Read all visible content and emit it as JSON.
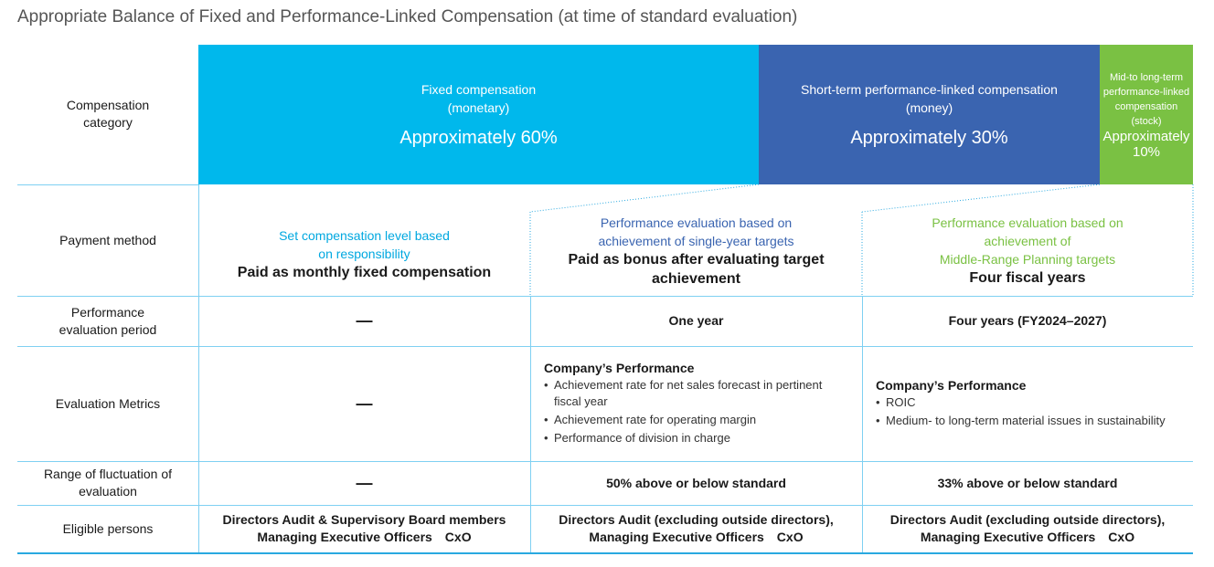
{
  "title": "Appropriate Balance of Fixed and Performance-Linked Compensation (at time of standard evaluation)",
  "colors": {
    "fixed": "#00b8ec",
    "short_term": "#3a64b0",
    "long_term": "#7ac143",
    "line": "#7fd0f2"
  },
  "row_labels": {
    "category": "Compensation category",
    "payment": "Payment method",
    "period": "Performance evaluation period",
    "metrics": "Evaluation Metrics",
    "range": "Range of fluctuation of evaluation",
    "eligible": "Eligible persons"
  },
  "categories": {
    "fixed": {
      "name_line1": "Fixed compensation",
      "name_line2": "(monetary)",
      "share": "Approximately 60%"
    },
    "short_term": {
      "name_line1": "Short-term performance-linked compensation",
      "name_line2": "(money)",
      "share": "Approximately 30%"
    },
    "long_term": {
      "name_line1": "Mid-to long-term",
      "name_line2": "performance-linked",
      "name_line3": "compensation",
      "name_line4": "(stock)",
      "share_line1": "Approximately",
      "share_line2": "10%"
    }
  },
  "payment": {
    "fixed": {
      "hl1": "Set compensation level based",
      "hl2": "on responsibility",
      "main": "Paid as monthly fixed compensation"
    },
    "short_term": {
      "hl1": "Performance evaluation based on",
      "hl2": "achievement of single-year targets",
      "main1": "Paid as bonus after evaluating target",
      "main2": "achievement"
    },
    "long_term": {
      "hl1": "Performance evaluation based on",
      "hl2": "achievement of",
      "hl3": "Middle-Range Planning targets",
      "main": "Four fiscal years"
    }
  },
  "period": {
    "fixed": "—",
    "short_term": "One year",
    "long_term": "Four years (FY2024–2027)"
  },
  "metrics": {
    "fixed": "—",
    "short_term": {
      "title": "Company’s Performance",
      "items": [
        "Achievement rate for net sales forecast in pertinent fiscal year",
        "Achievement rate for operating margin",
        "Performance of division in charge"
      ]
    },
    "long_term": {
      "title": "Company’s Performance",
      "items": [
        "ROIC",
        "Medium- to long-term material issues in sustainability"
      ]
    }
  },
  "range": {
    "fixed": "—",
    "short_term": "50% above or below standard",
    "long_term": "33% above or below standard"
  },
  "eligible": {
    "fixed": {
      "line1": "Directors Audit & Supervisory Board members",
      "line2": "Managing Executive Officers　CxO"
    },
    "short_term": {
      "line1": "Directors Audit (excluding outside directors),",
      "line2": "Managing Executive Officers　CxO"
    },
    "long_term": {
      "line1": "Directors Audit (excluding outside directors),",
      "line2": "Managing Executive Officers　CxO"
    }
  }
}
